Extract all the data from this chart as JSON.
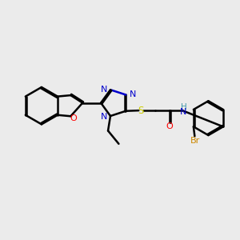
{
  "bg_color": "#ebebeb",
  "line_color": "#000000",
  "n_color": "#0000cc",
  "o_color": "#ff0000",
  "s_color": "#cccc00",
  "br_color": "#cc8800",
  "h_color": "#4499aa",
  "line_width": 1.8,
  "xlim": [
    0,
    10
  ],
  "ylim": [
    0,
    10
  ]
}
